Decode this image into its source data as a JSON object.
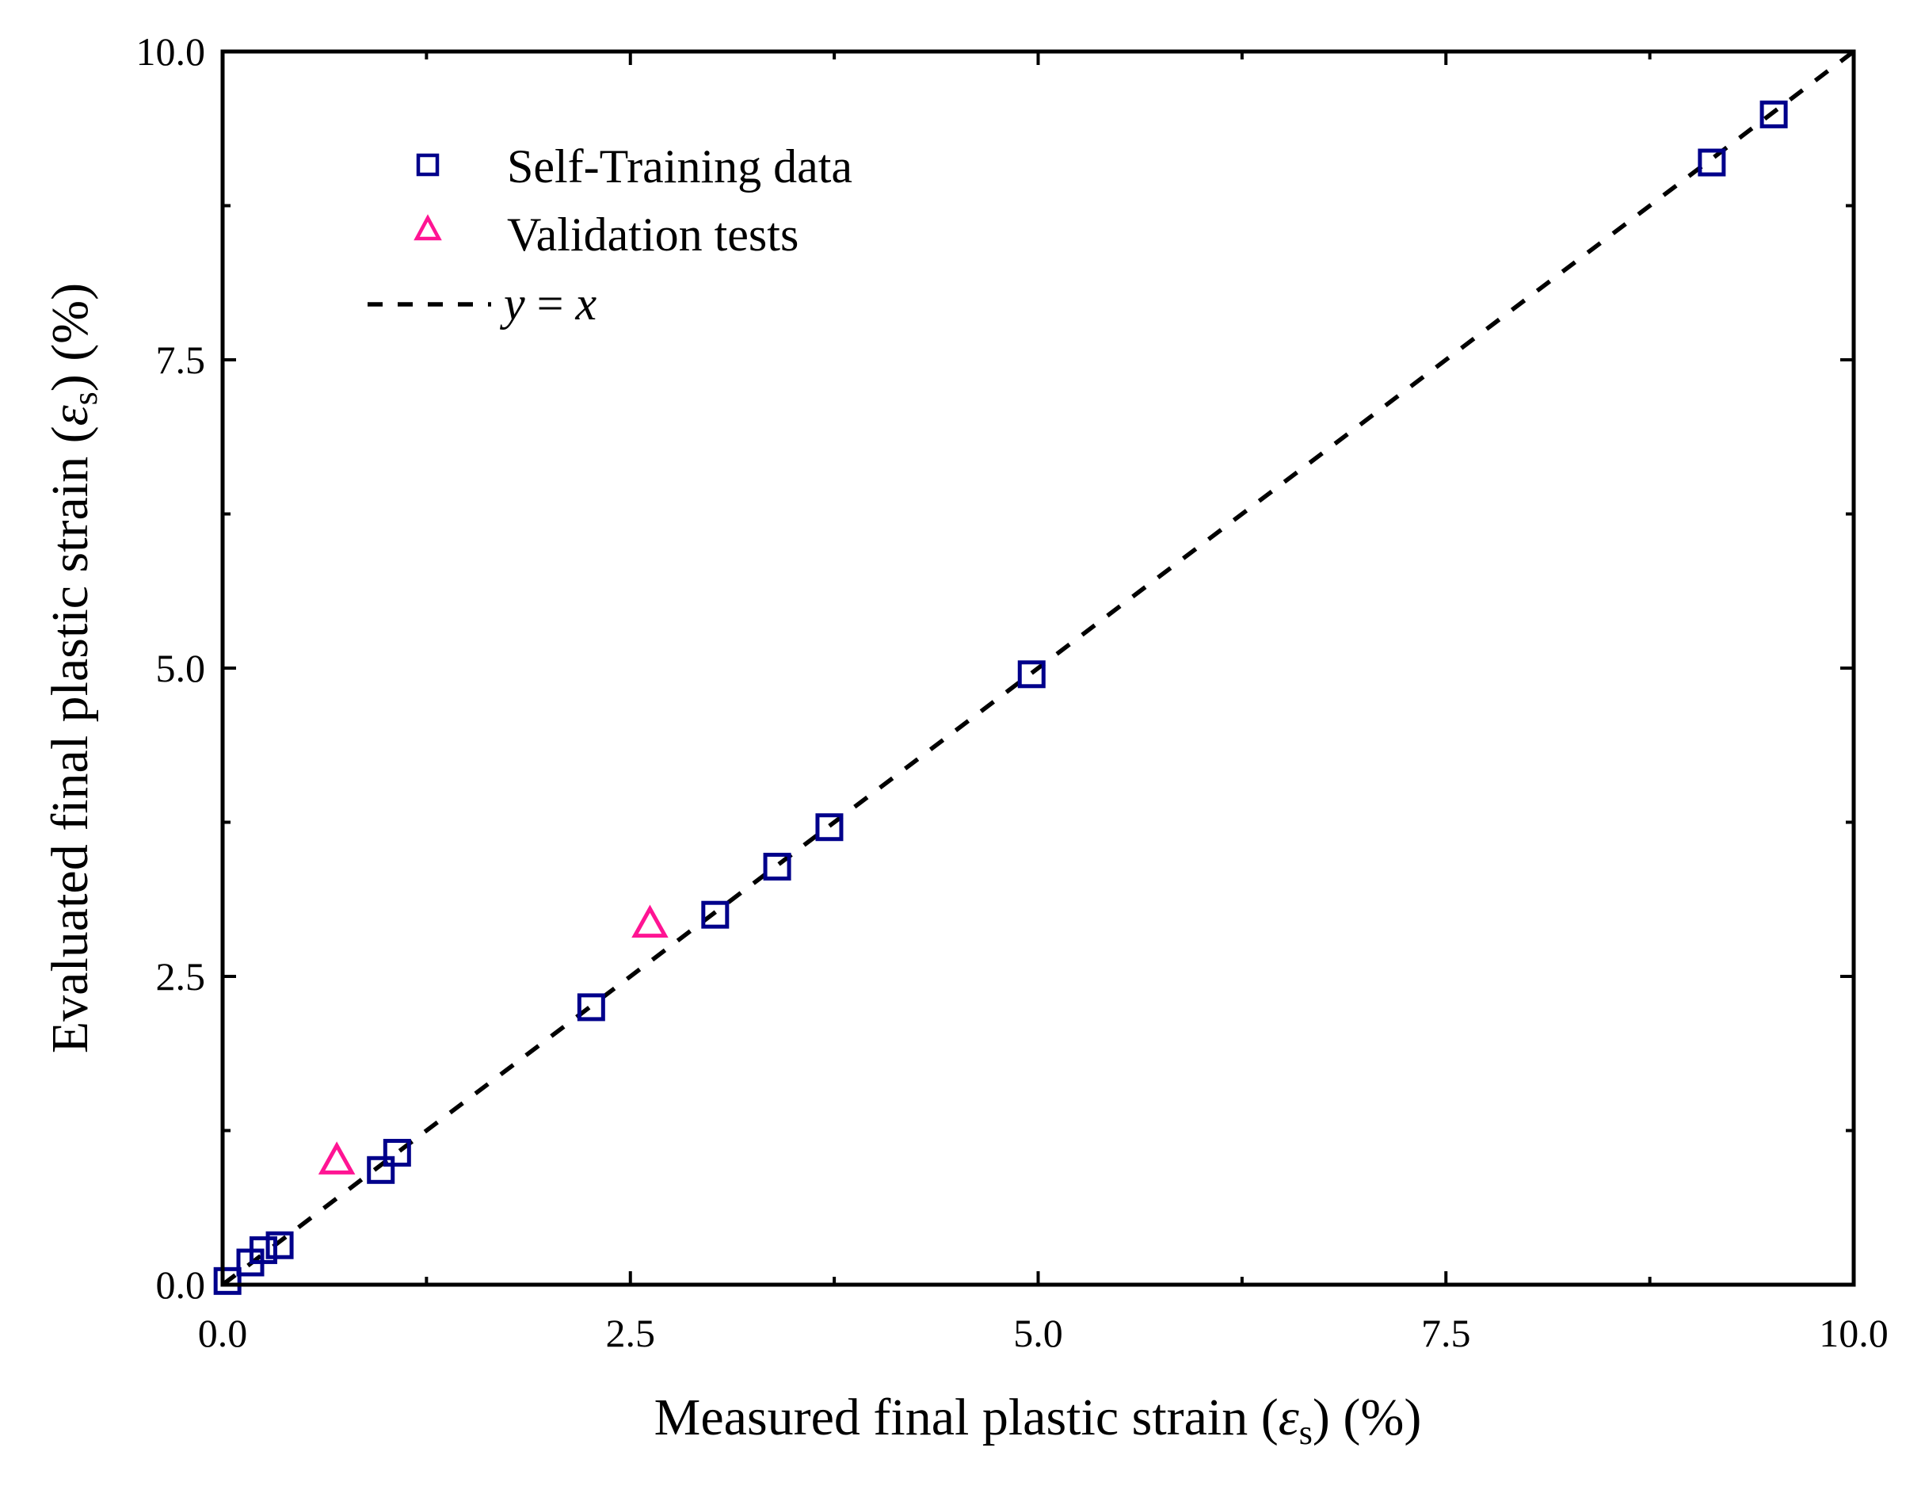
{
  "chart_data": {
    "type": "scatter",
    "title": "",
    "xlabel": {
      "prefix": "Measured final plastic strain (",
      "symbol": "ε",
      "subscript": "s",
      "suffix": ") (%)"
    },
    "ylabel": {
      "prefix": "Evaluated final plastic strain (",
      "symbol": "ε",
      "subscript": "s",
      "suffix": ") (%)"
    },
    "xlim": [
      0,
      10
    ],
    "ylim": [
      0,
      10
    ],
    "xticks": [
      0,
      2.5,
      5,
      7.5,
      10
    ],
    "yticks": [
      0,
      2.5,
      5,
      7.5,
      10
    ],
    "xtick_labels": [
      "0.0",
      "2.5",
      "5.0",
      "7.5",
      "10.0"
    ],
    "ytick_labels": [
      "0.0",
      "2.5",
      "5.0",
      "7.5",
      "10.0"
    ],
    "minor_step": 1.25,
    "grid": false,
    "legend_position": "top-left",
    "series": [
      {
        "name": "Self-Training data",
        "marker": "open-square",
        "color": "#00008B",
        "points": [
          {
            "x": 0.03,
            "y": 0.03
          },
          {
            "x": 0.17,
            "y": 0.18
          },
          {
            "x": 0.25,
            "y": 0.28
          },
          {
            "x": 0.35,
            "y": 0.32
          },
          {
            "x": 0.97,
            "y": 0.93
          },
          {
            "x": 1.07,
            "y": 1.07
          },
          {
            "x": 2.26,
            "y": 2.25
          },
          {
            "x": 3.02,
            "y": 3.0
          },
          {
            "x": 3.4,
            "y": 3.39
          },
          {
            "x": 3.72,
            "y": 3.71
          },
          {
            "x": 4.96,
            "y": 4.95
          },
          {
            "x": 9.13,
            "y": 9.1
          },
          {
            "x": 9.51,
            "y": 9.49
          }
        ]
      },
      {
        "name": "Validation tests",
        "marker": "open-triangle",
        "color": "#FF1493",
        "points": [
          {
            "x": 0.7,
            "y": 1.0
          },
          {
            "x": 2.62,
            "y": 2.92
          }
        ]
      },
      {
        "name": "y = x",
        "marker": "dashed-line",
        "color": "#000000",
        "label_parts": {
          "y": "y",
          "eq": " = ",
          "x": "x"
        },
        "points": [
          {
            "x": 0,
            "y": 0
          },
          {
            "x": 10,
            "y": 10
          }
        ]
      }
    ]
  }
}
